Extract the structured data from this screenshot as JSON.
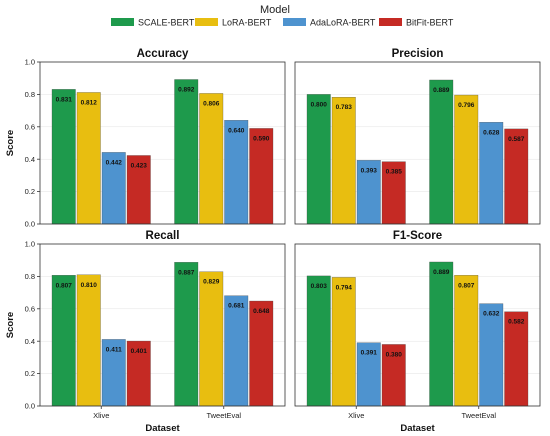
{
  "chart_data": {
    "type": "bar",
    "legend": {
      "title": "Model",
      "placement": "top-center"
    },
    "series_names": [
      "SCALE-BERT",
      "LoRA-BERT",
      "AdaLoRA-BERT",
      "BitFit-BERT"
    ],
    "colors": [
      "#1e9a4c",
      "#e8be10",
      "#4e93cf",
      "#c52a24"
    ],
    "xlabel": "Dataset",
    "ylabel": "Score",
    "ylim": [
      0,
      1.0
    ],
    "yticks": [
      "0.0",
      "0.2",
      "0.4",
      "0.6",
      "0.8",
      "1.0"
    ],
    "yticks_values": [
      0,
      0.2,
      0.4,
      0.6,
      0.8,
      1.0
    ],
    "grid": true,
    "panels": [
      {
        "title": "Accuracy",
        "categories": [
          "Xlive",
          "TweetEval"
        ],
        "series": [
          {
            "name": "SCALE-BERT",
            "values": [
              0.831,
              0.892
            ],
            "labels": [
              "0.831",
              "0.892"
            ]
          },
          {
            "name": "LoRA-BERT",
            "values": [
              0.812,
              0.806
            ],
            "labels": [
              "0.812",
              "0.806"
            ]
          },
          {
            "name": "AdaLoRA-BERT",
            "values": [
              0.442,
              0.64
            ],
            "labels": [
              "0.442",
              "0.640"
            ]
          },
          {
            "name": "BitFit-BERT",
            "values": [
              0.423,
              0.59
            ],
            "labels": [
              "0.423",
              "0.590"
            ]
          }
        ]
      },
      {
        "title": "Precision",
        "categories": [
          "Xlive",
          "TweetEval"
        ],
        "series": [
          {
            "name": "SCALE-BERT",
            "values": [
              0.8,
              0.889
            ],
            "labels": [
              "0.800",
              "0.889"
            ]
          },
          {
            "name": "LoRA-BERT",
            "values": [
              0.783,
              0.796
            ],
            "labels": [
              "0.783",
              "0.796"
            ]
          },
          {
            "name": "AdaLoRA-BERT",
            "values": [
              0.393,
              0.628
            ],
            "labels": [
              "0.393",
              "0.628"
            ]
          },
          {
            "name": "BitFit-BERT",
            "values": [
              0.385,
              0.587
            ],
            "labels": [
              "0.385",
              "0.587"
            ]
          }
        ]
      },
      {
        "title": "Recall",
        "categories": [
          "Xlive",
          "TweetEval"
        ],
        "series": [
          {
            "name": "SCALE-BERT",
            "values": [
              0.807,
              0.887
            ],
            "labels": [
              "0.807",
              "0.887"
            ]
          },
          {
            "name": "LoRA-BERT",
            "values": [
              0.81,
              0.829
            ],
            "labels": [
              "0.810",
              "0.829"
            ]
          },
          {
            "name": "AdaLoRA-BERT",
            "values": [
              0.411,
              0.681
            ],
            "labels": [
              "0.411",
              "0.681"
            ]
          },
          {
            "name": "BitFit-BERT",
            "values": [
              0.401,
              0.648
            ],
            "labels": [
              "0.401",
              "0.648"
            ]
          }
        ]
      },
      {
        "title": "F1-Score",
        "categories": [
          "Xlive",
          "TweetEval"
        ],
        "series": [
          {
            "name": "SCALE-BERT",
            "values": [
              0.803,
              0.889
            ],
            "labels": [
              "0.803",
              "0.889"
            ]
          },
          {
            "name": "LoRA-BERT",
            "values": [
              0.794,
              0.807
            ],
            "labels": [
              "0.794",
              "0.807"
            ]
          },
          {
            "name": "AdaLoRA-BERT",
            "values": [
              0.391,
              0.632
            ],
            "labels": [
              "0.391",
              "0.632"
            ]
          },
          {
            "name": "BitFit-BERT",
            "values": [
              0.38,
              0.582
            ],
            "labels": [
              "0.380",
              "0.582"
            ]
          }
        ]
      }
    ]
  }
}
